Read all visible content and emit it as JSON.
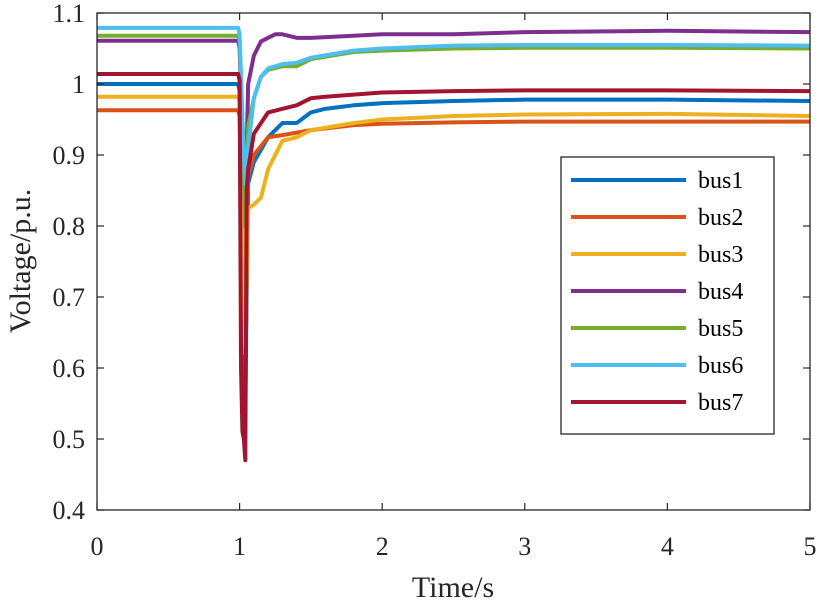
{
  "chart_data": {
    "type": "line",
    "xlabel": "Time/s",
    "ylabel": "Voltage/p.u.",
    "xlim": [
      0,
      5
    ],
    "ylim": [
      0.4,
      1.1
    ],
    "xticks": [
      0,
      1,
      2,
      3,
      4,
      5
    ],
    "yticks": [
      0.4,
      0.5,
      0.6,
      0.7,
      0.8,
      0.9,
      1,
      1.1
    ],
    "xtick_labels": [
      "0",
      "1",
      "2",
      "3",
      "4",
      "5"
    ],
    "ytick_labels": [
      "0.4",
      "0.5",
      "0.6",
      "0.7",
      "0.8",
      "0.9",
      "1",
      "1.1"
    ],
    "grid": false,
    "legend_position": "right",
    "series": [
      {
        "name": "bus1",
        "color": "#0072BD",
        "x": [
          0,
          0.99,
          1.0,
          1.02,
          1.04,
          1.06,
          1.1,
          1.2,
          1.3,
          1.4,
          1.5,
          1.6,
          1.8,
          2.0,
          2.5,
          3.0,
          3.5,
          4.0,
          5.0
        ],
        "y": [
          1.0,
          1.0,
          0.99,
          0.66,
          0.55,
          0.86,
          0.89,
          0.925,
          0.945,
          0.945,
          0.96,
          0.965,
          0.97,
          0.973,
          0.976,
          0.978,
          0.978,
          0.978,
          0.976
        ]
      },
      {
        "name": "bus2",
        "color": "#D95319",
        "x": [
          0,
          0.99,
          1.0,
          1.02,
          1.04,
          1.06,
          1.1,
          1.2,
          1.3,
          1.5,
          1.8,
          2.0,
          2.5,
          3.0,
          4.0,
          5.0
        ],
        "y": [
          0.963,
          0.963,
          0.955,
          0.78,
          0.74,
          0.87,
          0.9,
          0.925,
          0.928,
          0.935,
          0.942,
          0.944,
          0.946,
          0.947,
          0.947,
          0.947
        ]
      },
      {
        "name": "bus3",
        "color": "#EDB120",
        "x": [
          0,
          0.99,
          1.0,
          1.02,
          1.04,
          1.06,
          1.1,
          1.15,
          1.2,
          1.3,
          1.4,
          1.5,
          1.8,
          2.0,
          2.5,
          3.0,
          4.0,
          5.0
        ],
        "y": [
          0.982,
          0.982,
          0.975,
          0.82,
          0.62,
          0.825,
          0.83,
          0.84,
          0.88,
          0.92,
          0.925,
          0.935,
          0.945,
          0.95,
          0.955,
          0.957,
          0.958,
          0.955
        ]
      },
      {
        "name": "bus4",
        "color": "#7E2F8E",
        "x": [
          0,
          0.99,
          1.0,
          1.02,
          1.04,
          1.06,
          1.1,
          1.15,
          1.2,
          1.25,
          1.3,
          1.4,
          1.5,
          1.8,
          2.0,
          2.5,
          3.0,
          4.0,
          5.0
        ],
        "y": [
          1.061,
          1.061,
          1.05,
          0.92,
          0.82,
          1.0,
          1.04,
          1.06,
          1.065,
          1.07,
          1.07,
          1.065,
          1.065,
          1.068,
          1.07,
          1.07,
          1.073,
          1.075,
          1.073
        ]
      },
      {
        "name": "bus5",
        "color": "#77AC30",
        "x": [
          0,
          0.99,
          1.0,
          1.02,
          1.04,
          1.06,
          1.1,
          1.15,
          1.2,
          1.3,
          1.4,
          1.5,
          1.8,
          2.0,
          2.5,
          3.0,
          4.0,
          5.0
        ],
        "y": [
          1.068,
          1.068,
          1.06,
          0.95,
          0.8,
          0.94,
          0.98,
          1.01,
          1.02,
          1.025,
          1.025,
          1.035,
          1.045,
          1.047,
          1.05,
          1.051,
          1.051,
          1.05
        ]
      },
      {
        "name": "bus6",
        "color": "#4DBEEE",
        "x": [
          0,
          0.99,
          1.0,
          1.02,
          1.04,
          1.06,
          1.1,
          1.15,
          1.2,
          1.3,
          1.4,
          1.5,
          1.8,
          2.0,
          2.5,
          3.0,
          4.0,
          5.0
        ],
        "y": [
          1.079,
          1.079,
          1.07,
          0.95,
          0.86,
          0.91,
          0.98,
          1.01,
          1.022,
          1.028,
          1.03,
          1.037,
          1.047,
          1.05,
          1.054,
          1.055,
          1.055,
          1.054
        ]
      },
      {
        "name": "bus7",
        "color": "#A2142F",
        "x": [
          0,
          0.99,
          1.0,
          1.01,
          1.02,
          1.03,
          1.04,
          1.05,
          1.06,
          1.1,
          1.2,
          1.3,
          1.4,
          1.5,
          1.6,
          1.8,
          2.0,
          2.5,
          3.0,
          4.0,
          5.0
        ],
        "y": [
          1.014,
          1.014,
          1.005,
          0.6,
          0.51,
          0.5,
          0.47,
          0.85,
          0.88,
          0.93,
          0.96,
          0.965,
          0.97,
          0.98,
          0.982,
          0.985,
          0.988,
          0.99,
          0.991,
          0.991,
          0.99
        ]
      }
    ]
  }
}
